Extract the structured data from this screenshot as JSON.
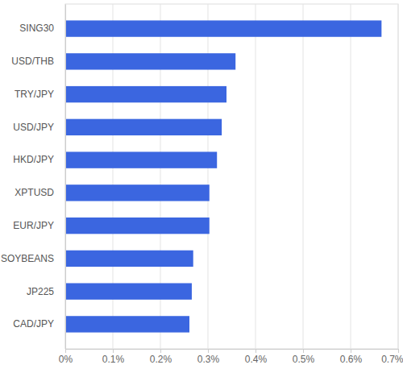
{
  "chart_data": {
    "type": "bar",
    "orientation": "horizontal",
    "categories": [
      "SING30",
      "USD/THB",
      "TRY/JPY",
      "USD/JPY",
      "HKD/JPY",
      "XPTUSD",
      "EUR/JPY",
      "SOYBEANS",
      "JP225",
      "CAD/JPY"
    ],
    "values": [
      0.665,
      0.358,
      0.339,
      0.329,
      0.319,
      0.303,
      0.303,
      0.269,
      0.266,
      0.261
    ],
    "color": "#3b66e0",
    "xlim": [
      0,
      0.7
    ],
    "xticks": [
      {
        "value": 0,
        "label": "0%"
      },
      {
        "value": 0.1,
        "label": "0.1%"
      },
      {
        "value": 0.2,
        "label": "0.2%"
      },
      {
        "value": 0.3,
        "label": "0.3%"
      },
      {
        "value": 0.4,
        "label": "0.4%"
      },
      {
        "value": 0.5,
        "label": "0.5%"
      },
      {
        "value": 0.6,
        "label": "0.6%"
      },
      {
        "value": 0.7,
        "label": "0.7%"
      }
    ],
    "grid": true
  }
}
